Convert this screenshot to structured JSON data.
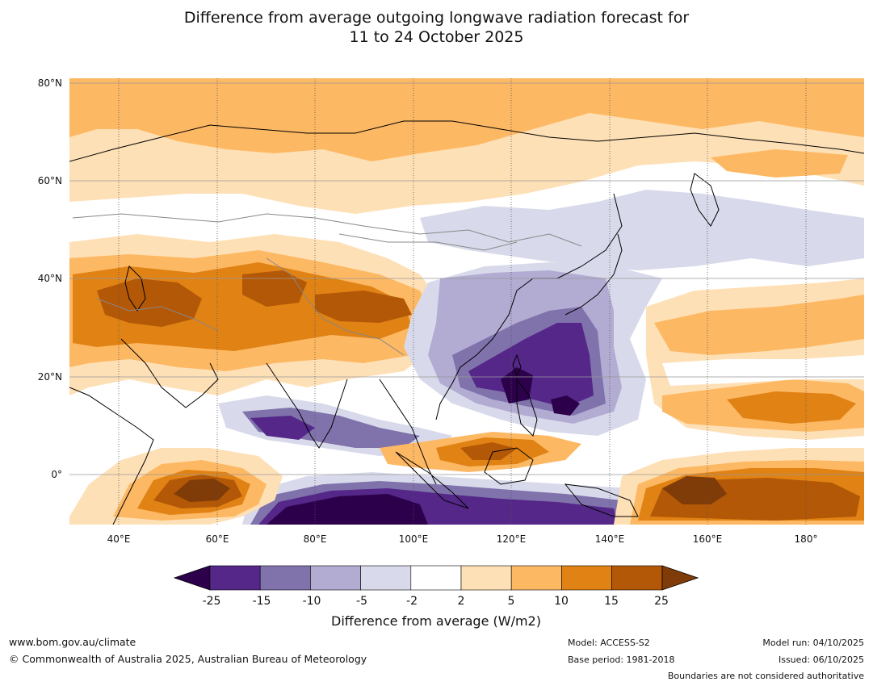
{
  "title_line1": "Difference from average outgoing longwave radiation forecast for",
  "title_line2": "11 to 24 October 2025",
  "map": {
    "lon_ticks": [
      "40°E",
      "60°E",
      "80°E",
      "100°E",
      "120°E",
      "140°E",
      "160°E",
      "180°"
    ],
    "lat_ticks": [
      "80°N",
      "60°N",
      "40°N",
      "20°N",
      "0°"
    ],
    "lon_range": [
      30,
      192
    ],
    "lat_range": [
      -10,
      81
    ]
  },
  "colorbar": {
    "title": "Difference from average (W/m2)",
    "levels": [
      "-25",
      "-15",
      "-10",
      "-5",
      "-2",
      "2",
      "5",
      "10",
      "15",
      "25"
    ],
    "under_color": "#2d004b",
    "over_color": "#7f3b08",
    "colors": [
      "#542788",
      "#8073ac",
      "#b2abd2",
      "#d8daeb",
      "#ffffff",
      "#fee0b6",
      "#fdb863",
      "#e08214",
      "#b35806"
    ]
  },
  "footer": {
    "website": "www.bom.gov.au/climate",
    "copyright": "© Commonwealth of Australia 2025, Australian Bureau of Meteorology",
    "model": "Model: ACCESS-S2",
    "base_period": "Base period: 1981-2018",
    "model_run": "Model run: 04/10/2025",
    "issued": "Issued: 06/10/2025",
    "disclaimer": "Boundaries are not considered authoritative"
  }
}
